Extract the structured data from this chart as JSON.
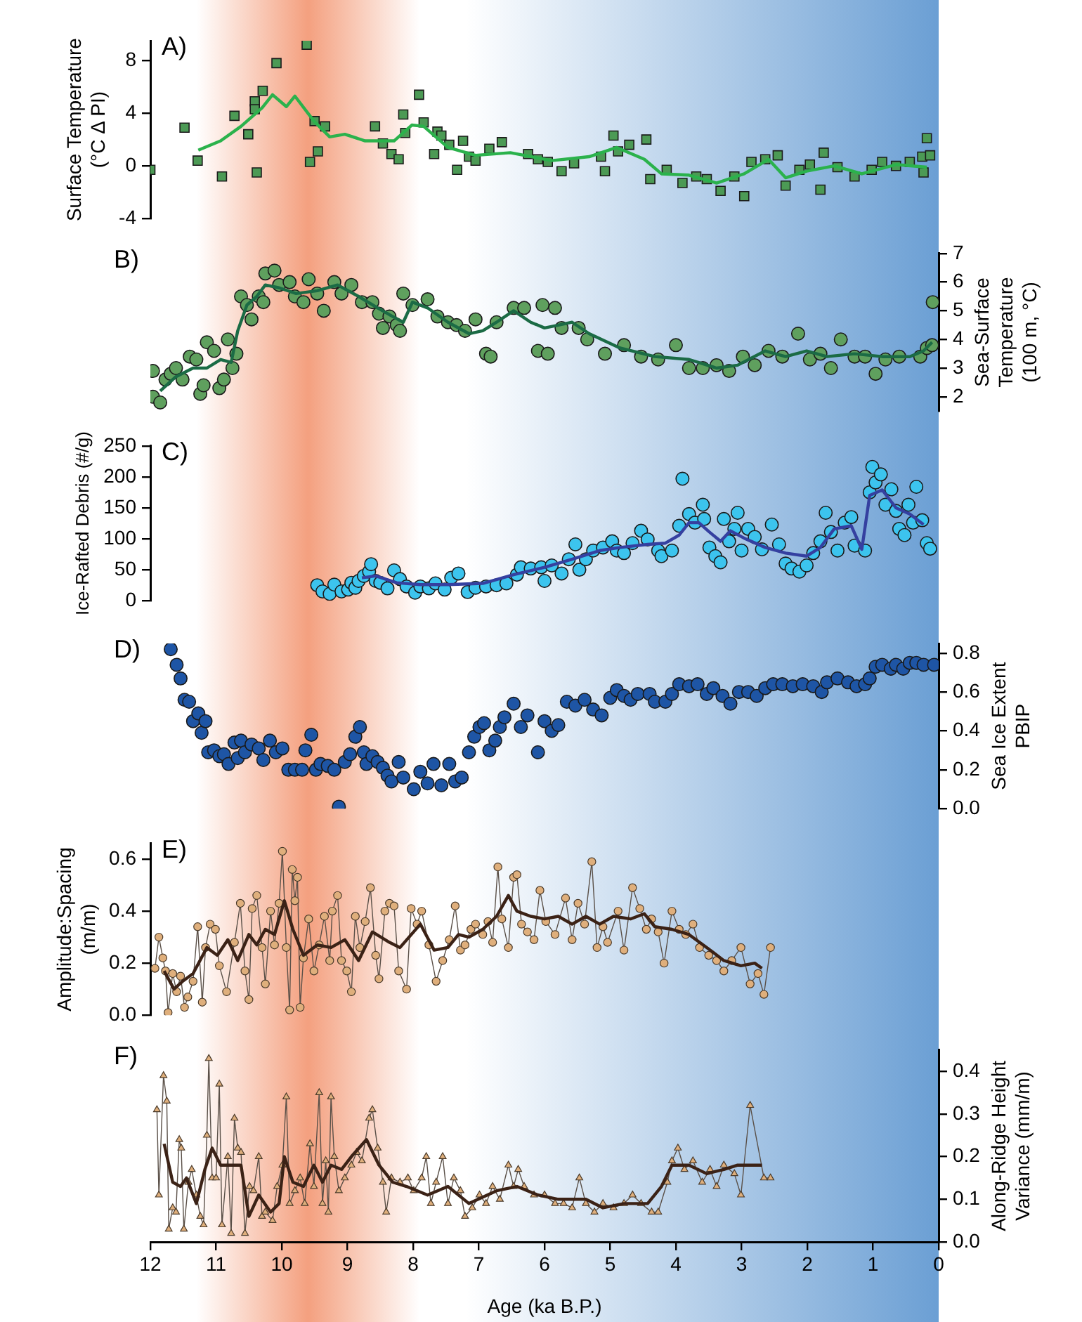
{
  "chart_data": [
    {
      "type": "scatter",
      "title": "A)",
      "ylabel": "Surface Temperature\n(°C Δ PI)",
      "xlim": [
        12,
        0
      ],
      "ylim": [
        -4,
        9.5
      ],
      "yticks": [
        -4,
        0,
        4,
        8
      ],
      "tick_labels": "y",
      "bands": [
        {
          "axis": "x",
          "from": 11.3,
          "to": 7.9,
          "color": "#f4a07f"
        },
        {
          "axis": "x",
          "from": 7.2,
          "to": 0,
          "color": "#6b9fd4"
        }
      ],
      "series": [
        {
          "marker": "square",
          "color": "#4c9a55",
          "x": [
            12.0,
            11.48,
            11.28,
            10.91,
            10.72,
            10.51,
            10.41,
            10.41,
            10.38,
            10.29,
            10.08,
            9.62,
            9.57,
            9.5,
            9.45,
            9.34,
            8.58,
            8.46,
            8.33,
            8.22,
            8.15,
            8.12,
            7.91,
            7.84,
            7.68,
            7.63,
            7.57,
            7.45,
            7.33,
            7.24,
            7.15,
            7.05,
            6.84,
            6.65,
            6.25,
            6.1,
            5.95,
            5.74,
            5.55,
            5.14,
            5.08,
            4.95,
            4.88,
            4.71,
            4.45,
            4.39,
            4.14,
            3.9,
            3.69,
            3.53,
            3.32,
            3.11,
            2.96,
            2.85,
            2.64,
            2.45,
            2.33,
            2.12,
            1.96,
            1.8,
            1.75,
            1.54,
            1.28,
            1.02,
            0.86,
            0.65,
            0.44,
            0.25,
            0.23,
            0.18,
            0.13
          ],
          "values": [
            -0.3,
            2.9,
            0.4,
            -0.8,
            3.8,
            2.4,
            4.9,
            4.3,
            -0.5,
            5.7,
            7.8,
            9.2,
            0.3,
            3.4,
            1.1,
            3.0,
            3.0,
            1.7,
            0.9,
            0.5,
            3.9,
            2.5,
            5.4,
            3.3,
            0.9,
            2.6,
            2.3,
            1.6,
            -0.3,
            1.9,
            0.7,
            0.4,
            1.3,
            1.8,
            0.9,
            0.5,
            0.3,
            -0.4,
            0.2,
            0.7,
            -0.4,
            2.3,
            1.1,
            1.6,
            2.0,
            -1.0,
            -0.3,
            -1.3,
            -0.8,
            -1.0,
            -1.9,
            -0.8,
            -2.3,
            0.3,
            0.5,
            0.8,
            -1.5,
            -0.3,
            0.1,
            -1.8,
            1.0,
            -0.1,
            -0.8,
            -0.3,
            0.3,
            0.0,
            0.3,
            0.7,
            -0.5,
            2.1,
            0.8
          ]
        },
        {
          "type": "line",
          "marker": "none",
          "color": "#2bb24c",
          "x": [
            11.27,
            10.93,
            10.62,
            10.3,
            10.14,
            9.93,
            9.8,
            9.51,
            9.27,
            9.04,
            8.73,
            8.29,
            8.02,
            7.84,
            7.47,
            7.05,
            6.52,
            5.89,
            5.32,
            4.9,
            4.48,
            4.22,
            3.8,
            3.38,
            2.96,
            2.59,
            2.33,
            2.01,
            1.59,
            1.17,
            0.65,
            0.18
          ],
          "values": [
            1.2,
            1.9,
            3.0,
            4.4,
            5.4,
            4.5,
            5.3,
            3.4,
            2.2,
            2.4,
            1.9,
            1.9,
            3.1,
            3.0,
            1.4,
            0.8,
            1.0,
            0.4,
            0.7,
            1.4,
            0.5,
            -0.6,
            -0.7,
            -1.3,
            -0.6,
            0.5,
            -0.9,
            -0.4,
            0.0,
            -0.6,
            0.1,
            -0.1
          ]
        }
      ]
    },
    {
      "type": "scatter",
      "title": "B)",
      "y2label": "Sea-Surface\nTemperature\n(100 m, °C)",
      "xlim": [
        12,
        0
      ],
      "y2lim": [
        1.5,
        7
      ],
      "y2ticks": [
        2,
        3,
        4,
        5,
        6,
        7
      ],
      "tick_labels": "y",
      "bands": [
        {
          "axis": "x",
          "from": 11.3,
          "to": 7.9,
          "color": "#f4a07f"
        },
        {
          "axis": "x",
          "from": 7.2,
          "to": 0,
          "color": "#6b9fd4"
        }
      ],
      "series": [
        {
          "axis": "y2",
          "marker": "circle",
          "color": "#5fa05e",
          "x": [
            11.96,
            11.96,
            11.85,
            11.77,
            11.69,
            11.61,
            11.51,
            11.4,
            11.3,
            11.24,
            11.19,
            11.14,
            11.03,
            10.95,
            10.88,
            10.82,
            10.75,
            10.69,
            10.62,
            10.53,
            10.46,
            10.35,
            10.28,
            10.25,
            10.11,
            10.04,
            9.88,
            9.8,
            9.67,
            9.59,
            9.46,
            9.36,
            9.2,
            9.09,
            8.94,
            8.78,
            8.62,
            8.52,
            8.46,
            8.36,
            8.25,
            8.2,
            8.15,
            8.01,
            7.78,
            7.63,
            7.47,
            7.34,
            7.21,
            7.05,
            6.89,
            6.82,
            6.73,
            6.47,
            6.31,
            6.1,
            5.95,
            6.03,
            5.84,
            5.74,
            5.48,
            5.35,
            5.08,
            4.79,
            4.53,
            4.27,
            4.0,
            3.8,
            3.59,
            3.38,
            3.19,
            2.98,
            2.8,
            2.59,
            2.38,
            2.14,
            1.96,
            1.8,
            1.64,
            1.49,
            1.28,
            1.12,
            0.96,
            0.81,
            0.6,
            0.28,
            0.18,
            0.1,
            0.09
          ],
          "values": [
            2.9,
            2.0,
            1.8,
            2.6,
            2.8,
            3.0,
            2.6,
            3.4,
            3.3,
            2.1,
            2.4,
            3.9,
            3.6,
            2.3,
            2.6,
            4.0,
            3.0,
            3.5,
            5.5,
            5.2,
            4.7,
            5.5,
            5.3,
            6.3,
            6.4,
            5.9,
            6.0,
            5.5,
            5.3,
            6.1,
            5.6,
            5.0,
            6.0,
            5.6,
            5.9,
            5.3,
            5.3,
            4.9,
            4.4,
            4.8,
            4.5,
            4.3,
            5.6,
            5.2,
            5.4,
            4.8,
            4.6,
            4.5,
            4.3,
            4.7,
            3.5,
            3.4,
            4.6,
            5.1,
            5.1,
            3.6,
            3.5,
            5.2,
            5.1,
            4.4,
            4.4,
            4.0,
            3.5,
            3.8,
            3.4,
            3.3,
            3.8,
            3.0,
            3.0,
            3.1,
            2.9,
            3.4,
            3.1,
            3.6,
            3.4,
            4.2,
            3.3,
            3.5,
            3.0,
            4.0,
            3.4,
            3.4,
            2.8,
            3.3,
            3.4,
            3.4,
            3.7,
            3.8,
            5.3
          ]
        },
        {
          "type": "line",
          "axis": "y2",
          "marker": "none",
          "color": "#1b6b45",
          "x": [
            11.85,
            11.61,
            11.35,
            11.14,
            10.93,
            10.77,
            10.67,
            10.53,
            10.38,
            10.25,
            10.04,
            9.78,
            9.46,
            9.15,
            8.83,
            8.54,
            8.31,
            8.15,
            8.01,
            7.78,
            7.47,
            7.15,
            6.94,
            6.73,
            6.47,
            6.21,
            6.0,
            5.79,
            5.58,
            5.32,
            4.85,
            4.32,
            3.8,
            3.38,
            3.06,
            2.64,
            2.33,
            2.01,
            1.7,
            1.28,
            0.86,
            0.44,
            0.23,
            0.1
          ],
          "values": [
            2.2,
            2.7,
            3.0,
            3.0,
            3.3,
            3.2,
            4.3,
            5.2,
            5.5,
            5.9,
            5.8,
            5.6,
            5.7,
            5.9,
            5.5,
            5.1,
            4.8,
            4.6,
            5.3,
            5.1,
            4.6,
            4.2,
            4.3,
            4.6,
            5.0,
            4.6,
            4.4,
            4.5,
            4.6,
            4.2,
            3.7,
            3.4,
            3.3,
            3.0,
            3.1,
            3.6,
            3.4,
            3.6,
            3.4,
            3.5,
            3.4,
            3.4,
            3.6,
            3.9
          ]
        }
      ]
    },
    {
      "type": "scatter",
      "title": "C)",
      "ylabel": "Ice-Rafted Debris (#/g)",
      "xlim": [
        12,
        0
      ],
      "ylim": [
        0,
        250
      ],
      "yticks": [
        0,
        50,
        100,
        150,
        200,
        250
      ],
      "tick_labels": "y",
      "bands": [
        {
          "axis": "x",
          "from": 11.3,
          "to": 7.9,
          "color": "#f4a07f"
        },
        {
          "axis": "x",
          "from": 7.2,
          "to": 0,
          "color": "#6b9fd4"
        }
      ],
      "series": [
        {
          "marker": "circle",
          "color": "#3cc4ee",
          "x": [
            9.46,
            9.38,
            9.27,
            9.2,
            9.09,
            8.99,
            8.94,
            8.88,
            8.83,
            8.75,
            8.67,
            8.64,
            8.57,
            8.5,
            8.39,
            8.29,
            8.2,
            8.1,
            7.97,
            7.89,
            7.76,
            7.66,
            7.52,
            7.42,
            7.31,
            7.17,
            7.05,
            6.89,
            6.73,
            6.58,
            6.42,
            6.36,
            6.21,
            6.05,
            6.0,
            5.89,
            5.74,
            5.63,
            5.53,
            5.47,
            5.37,
            5.26,
            5.11,
            4.97,
            4.9,
            4.79,
            4.66,
            4.53,
            4.43,
            4.27,
            4.22,
            4.06,
            3.95,
            3.9,
            3.8,
            3.71,
            3.59,
            3.57,
            3.49,
            3.4,
            3.32,
            3.27,
            3.19,
            3.11,
            3.06,
            3.0,
            2.9,
            2.8,
            2.69,
            2.54,
            2.43,
            2.33,
            2.24,
            2.12,
            2.01,
            1.91,
            1.8,
            1.72,
            1.64,
            1.54,
            1.43,
            1.33,
            1.28,
            1.12,
            1.05,
            1.01,
            0.96,
            0.88,
            0.81,
            0.72,
            0.65,
            0.6,
            0.52,
            0.46,
            0.39,
            0.34,
            0.25,
            0.18,
            0.13
          ],
          "values": [
            25,
            15,
            11,
            26,
            15,
            18,
            29,
            21,
            32,
            40,
            47,
            59,
            32,
            29,
            20,
            49,
            35,
            23,
            13,
            23,
            20,
            28,
            18,
            37,
            44,
            14,
            21,
            23,
            25,
            28,
            42,
            54,
            52,
            54,
            32,
            57,
            44,
            67,
            91,
            50,
            67,
            81,
            86,
            96,
            81,
            77,
            93,
            113,
            99,
            81,
            72,
            81,
            121,
            197,
            140,
            126,
            155,
            132,
            86,
            72,
            62,
            132,
            96,
            116,
            142,
            81,
            116,
            103,
            83,
            123,
            91,
            60,
            52,
            47,
            57,
            77,
            96,
            142,
            111,
            81,
            126,
            135,
            89,
            81,
            175,
            216,
            191,
            204,
            155,
            180,
            145,
            116,
            106,
            155,
            126,
            184,
            130,
            93,
            84
          ]
        },
        {
          "type": "line",
          "marker": "none",
          "color": "#3540a0",
          "x": [
            8.78,
            8.57,
            8.25,
            7.89,
            7.47,
            6.94,
            6.47,
            6.0,
            5.58,
            5.16,
            4.85,
            4.43,
            4.16,
            3.95,
            3.8,
            3.65,
            3.49,
            3.32,
            3.17,
            2.96,
            2.64,
            2.33,
            2.01,
            1.8,
            1.59,
            1.33,
            1.17,
            1.05,
            0.86,
            0.65,
            0.44,
            0.23
          ],
          "values": [
            37,
            40,
            29,
            26,
            26,
            28,
            42,
            54,
            67,
            81,
            86,
            91,
            93,
            106,
            126,
            126,
            111,
            96,
            113,
            101,
            86,
            77,
            72,
            86,
            116,
            121,
            83,
            170,
            179,
            150,
            140,
            123
          ]
        }
      ]
    },
    {
      "type": "scatter",
      "title": "D)",
      "y2label": "Sea Ice Extent\nPBIP",
      "xlim": [
        12,
        0
      ],
      "y2lim": [
        0,
        0.85
      ],
      "y2ticks": [
        {
          "value": 0,
          "label": "0.0"
        },
        0.2,
        0.4,
        0.6,
        0.8
      ],
      "tick_labels": "y",
      "bands": [
        {
          "axis": "x",
          "from": 11.3,
          "to": 7.9,
          "color": "#f4a07f"
        },
        {
          "axis": "x",
          "from": 7.2,
          "to": 0,
          "color": "#6b9fd4"
        }
      ],
      "series": [
        {
          "axis": "y2",
          "marker": "circle",
          "color": "#1e55a5",
          "x": [
            11.69,
            11.6,
            11.54,
            11.48,
            11.41,
            11.35,
            11.27,
            11.22,
            11.16,
            11.12,
            11.03,
            10.95,
            10.88,
            10.81,
            10.72,
            10.67,
            10.62,
            10.56,
            10.46,
            10.35,
            10.28,
            10.18,
            10.09,
            9.99,
            9.9,
            9.8,
            9.69,
            9.64,
            9.55,
            9.48,
            9.41,
            9.3,
            9.2,
            9.13,
            9.04,
            8.96,
            8.88,
            8.81,
            8.75,
            8.71,
            8.62,
            8.54,
            8.46,
            8.39,
            8.33,
            8.22,
            8.15,
            7.99,
            7.89,
            7.78,
            7.69,
            7.57,
            7.45,
            7.36,
            7.26,
            7.15,
            7.07,
            6.99,
            6.92,
            6.84,
            6.75,
            6.68,
            6.61,
            6.47,
            6.36,
            6.26,
            6.1,
            6.0,
            5.89,
            5.79,
            5.66,
            5.53,
            5.39,
            5.26,
            5.13,
            5.0,
            4.9,
            4.79,
            4.69,
            4.58,
            4.4,
            4.32,
            4.16,
            4.06,
            3.95,
            3.8,
            3.67,
            3.53,
            3.43,
            3.29,
            3.17,
            3.04,
            2.9,
            2.77,
            2.64,
            2.52,
            2.38,
            2.22,
            2.07,
            1.91,
            1.78,
            1.7,
            1.54,
            1.38,
            1.25,
            1.12,
            1.05,
            0.96,
            0.86,
            0.73,
            0.65,
            0.54,
            0.44,
            0.34,
            0.23,
            0.07
          ],
          "values": [
            0.82,
            0.74,
            0.67,
            0.56,
            0.55,
            0.45,
            0.49,
            0.39,
            0.45,
            0.29,
            0.3,
            0.27,
            0.28,
            0.23,
            0.34,
            0.26,
            0.35,
            0.29,
            0.33,
            0.31,
            0.25,
            0.35,
            0.29,
            0.31,
            0.2,
            0.2,
            0.2,
            0.3,
            0.38,
            0.2,
            0.23,
            0.22,
            0.2,
            0.01,
            0.24,
            0.28,
            0.37,
            0.42,
            0.29,
            0.23,
            0.27,
            0.24,
            0.21,
            0.17,
            0.14,
            0.24,
            0.16,
            0.1,
            0.19,
            0.13,
            0.23,
            0.12,
            0.23,
            0.14,
            0.16,
            0.29,
            0.37,
            0.42,
            0.44,
            0.3,
            0.35,
            0.42,
            0.47,
            0.54,
            0.42,
            0.48,
            0.29,
            0.45,
            0.4,
            0.43,
            0.55,
            0.53,
            0.56,
            0.51,
            0.48,
            0.57,
            0.61,
            0.58,
            0.56,
            0.59,
            0.59,
            0.55,
            0.55,
            0.59,
            0.64,
            0.63,
            0.64,
            0.59,
            0.62,
            0.58,
            0.54,
            0.6,
            0.6,
            0.58,
            0.62,
            0.64,
            0.64,
            0.63,
            0.64,
            0.63,
            0.6,
            0.65,
            0.67,
            0.65,
            0.63,
            0.64,
            0.67,
            0.73,
            0.74,
            0.72,
            0.74,
            0.72,
            0.75,
            0.75,
            0.74,
            0.74
          ]
        }
      ]
    },
    {
      "type": "line",
      "title": "E)",
      "ylabel": "Amplitude:Spacing\n(m/m)",
      "xlim": [
        12,
        0
      ],
      "ylim": [
        0,
        0.66
      ],
      "yticks": [
        {
          "value": 0,
          "label": "0.0"
        },
        0.2,
        0.4,
        0.6
      ],
      "tick_labels": "y",
      "bands": [
        {
          "axis": "x",
          "from": 11.3,
          "to": 7.9,
          "color": "#f4a07f"
        },
        {
          "axis": "x",
          "from": 7.2,
          "to": 0,
          "color": "#6b9fd4"
        }
      ],
      "series": [
        {
          "marker": "circle",
          "color": "#dfaf7c",
          "x": [
            11.93,
            11.87,
            11.81,
            11.77,
            11.73,
            11.66,
            11.6,
            11.54,
            11.48,
            11.43,
            11.35,
            11.28,
            11.21,
            11.16,
            11.09,
            11.01,
            10.95,
            10.84,
            10.72,
            10.63,
            10.56,
            10.5,
            10.45,
            10.38,
            10.3,
            10.25,
            10.17,
            10.11,
            10.04,
            9.99,
            9.93,
            9.88,
            9.84,
            9.8,
            9.76,
            9.72,
            9.67,
            9.59,
            9.51,
            9.43,
            9.35,
            9.27,
            9.23,
            9.15,
            9.09,
            9.01,
            8.94,
            8.88,
            8.81,
            8.73,
            8.65,
            8.57,
            8.52,
            8.43,
            8.36,
            8.29,
            8.22,
            8.1,
            8.03,
            7.94,
            7.87,
            7.76,
            7.65,
            7.55,
            7.45,
            7.36,
            7.28,
            7.21,
            7.12,
            7.05,
            6.94,
            6.86,
            6.79,
            6.71,
            6.65,
            6.55,
            6.47,
            6.42,
            6.35,
            6.26,
            6.16,
            6.07,
            5.98,
            5.84,
            5.68,
            5.58,
            5.49,
            5.39,
            5.28,
            5.2,
            5.11,
            5.04,
            4.88,
            4.79,
            4.66,
            4.55,
            4.45,
            4.37,
            4.27,
            4.18,
            4.06,
            3.95,
            3.85,
            3.74,
            3.64,
            3.5,
            3.38,
            3.27,
            3.15,
            3.01,
            2.87,
            2.75,
            2.66,
            2.56
          ],
          "values": [
            0.18,
            0.3,
            0.22,
            0.17,
            0.01,
            0.16,
            0.09,
            0.15,
            0.03,
            0.07,
            0.13,
            0.34,
            0.05,
            0.26,
            0.35,
            0.33,
            0.19,
            0.09,
            0.28,
            0.43,
            0.17,
            0.06,
            0.41,
            0.46,
            0.26,
            0.12,
            0.4,
            0.27,
            0.43,
            0.63,
            0.26,
            0.02,
            0.56,
            0.44,
            0.53,
            0.03,
            0.22,
            0.37,
            0.17,
            0.27,
            0.38,
            0.21,
            0.4,
            0.46,
            0.21,
            0.17,
            0.09,
            0.38,
            0.26,
            0.36,
            0.49,
            0.23,
            0.14,
            0.4,
            0.43,
            0.42,
            0.17,
            0.1,
            0.41,
            0.35,
            0.4,
            0.27,
            0.13,
            0.21,
            0.29,
            0.42,
            0.25,
            0.27,
            0.33,
            0.35,
            0.31,
            0.36,
            0.28,
            0.57,
            0.37,
            0.26,
            0.53,
            0.54,
            0.35,
            0.32,
            0.29,
            0.48,
            0.36,
            0.31,
            0.45,
            0.29,
            0.43,
            0.35,
            0.59,
            0.26,
            0.34,
            0.28,
            0.4,
            0.25,
            0.49,
            0.41,
            0.33,
            0.37,
            0.32,
            0.2,
            0.4,
            0.33,
            0.31,
            0.35,
            0.26,
            0.23,
            0.21,
            0.17,
            0.21,
            0.26,
            0.12,
            0.16,
            0.08,
            0.26
          ]
        },
        {
          "marker": "none",
          "color": "#3b2216",
          "x": [
            11.79,
            11.64,
            11.51,
            11.35,
            11.14,
            10.98,
            10.82,
            10.67,
            10.5,
            10.38,
            10.25,
            10.11,
            9.96,
            9.83,
            9.67,
            9.46,
            9.25,
            9.04,
            8.83,
            8.62,
            8.36,
            8.2,
            7.89,
            7.68,
            7.47,
            7.31,
            7.15,
            6.94,
            6.73,
            6.55,
            6.42,
            6.21,
            6.0,
            5.79,
            5.58,
            5.37,
            5.16,
            4.95,
            4.69,
            4.48,
            4.32,
            4.06,
            3.8,
            3.53,
            3.27,
            3.01,
            2.8,
            2.69
          ],
          "values": [
            0.17,
            0.1,
            0.13,
            0.16,
            0.26,
            0.23,
            0.29,
            0.21,
            0.31,
            0.27,
            0.33,
            0.31,
            0.44,
            0.33,
            0.23,
            0.27,
            0.26,
            0.29,
            0.21,
            0.32,
            0.28,
            0.26,
            0.35,
            0.25,
            0.26,
            0.31,
            0.3,
            0.33,
            0.38,
            0.46,
            0.4,
            0.38,
            0.37,
            0.38,
            0.35,
            0.38,
            0.35,
            0.38,
            0.37,
            0.39,
            0.34,
            0.33,
            0.31,
            0.26,
            0.21,
            0.19,
            0.2,
            0.18
          ]
        }
      ]
    },
    {
      "type": "line",
      "title": "F)",
      "xlabel": "Age (ka B.P.)",
      "y2label": "Along-Ridge Height\nVariance (mm/m)",
      "xlim": [
        12,
        0
      ],
      "xticks": [
        12,
        11,
        10,
        9,
        8,
        7,
        6,
        5,
        4,
        3,
        2,
        1,
        0
      ],
      "y2lim": [
        0,
        0.45
      ],
      "y2ticks": [
        {
          "value": 0,
          "label": "0.0"
        },
        0.1,
        0.2,
        0.3,
        0.4
      ],
      "bands": [
        {
          "axis": "x",
          "from": 11.3,
          "to": 7.9,
          "color": "#f4a07f"
        },
        {
          "axis": "x",
          "from": 7.2,
          "to": 0,
          "color": "#6b9fd4"
        }
      ],
      "series": [
        {
          "axis": "y2",
          "marker": "triangle",
          "color": "#dfaf7c",
          "x": [
            11.9,
            11.87,
            11.8,
            11.75,
            11.72,
            11.66,
            11.61,
            11.56,
            11.53,
            11.49,
            11.42,
            11.37,
            11.3,
            11.24,
            11.19,
            11.14,
            11.11,
            11.06,
            11.0,
            10.95,
            10.91,
            10.82,
            10.77,
            10.72,
            10.67,
            10.62,
            10.56,
            10.49,
            10.43,
            10.35,
            10.3,
            10.25,
            10.14,
            10.07,
            9.99,
            9.93,
            9.88,
            9.8,
            9.72,
            9.65,
            9.57,
            9.51,
            9.43,
            9.38,
            9.33,
            9.29,
            9.25,
            9.2,
            9.13,
            9.04,
            8.94,
            8.86,
            8.78,
            8.67,
            8.62,
            8.54,
            8.46,
            8.41,
            8.33,
            8.2,
            8.08,
            7.99,
            7.87,
            7.8,
            7.73,
            7.65,
            7.55,
            7.47,
            7.38,
            7.28,
            7.21,
            7.1,
            6.99,
            6.89,
            6.79,
            6.68,
            6.55,
            6.47,
            6.4,
            6.31,
            6.16,
            6.0,
            5.84,
            5.71,
            5.58,
            5.47,
            5.37,
            5.24,
            5.11,
            4.95,
            4.79,
            4.66,
            4.53,
            4.37,
            4.27,
            4.13,
            4.06,
            3.97,
            3.87,
            3.74,
            3.6,
            3.48,
            3.38,
            3.27,
            3.11,
            3.01,
            2.87,
            2.66,
            2.56
          ],
          "values": [
            0.31,
            0.11,
            0.39,
            0.33,
            0.03,
            0.08,
            0.07,
            0.24,
            0.22,
            0.03,
            0.14,
            0.17,
            0.11,
            0.06,
            0.04,
            0.25,
            0.43,
            0.15,
            0.15,
            0.37,
            0.04,
            0.2,
            0.02,
            0.29,
            0.22,
            0.21,
            0.02,
            0.13,
            0.12,
            0.2,
            0.06,
            0.07,
            0.05,
            0.13,
            0.18,
            0.34,
            0.09,
            0.12,
            0.15,
            0.09,
            0.23,
            0.13,
            0.35,
            0.09,
            0.19,
            0.07,
            0.34,
            0.2,
            0.12,
            0.15,
            0.18,
            0.21,
            0.19,
            0.29,
            0.31,
            0.22,
            0.14,
            0.07,
            0.15,
            0.14,
            0.15,
            0.12,
            0.15,
            0.2,
            0.09,
            0.14,
            0.2,
            0.09,
            0.15,
            0.12,
            0.06,
            0.08,
            0.11,
            0.09,
            0.13,
            0.1,
            0.18,
            0.13,
            0.17,
            0.13,
            0.11,
            0.11,
            0.09,
            0.09,
            0.08,
            0.15,
            0.09,
            0.07,
            0.09,
            0.08,
            0.09,
            0.11,
            0.09,
            0.07,
            0.07,
            0.14,
            0.19,
            0.22,
            0.17,
            0.19,
            0.14,
            0.17,
            0.13,
            0.18,
            0.16,
            0.11,
            0.32,
            0.15,
            0.15
          ]
        },
        {
          "axis": "y2",
          "marker": "none",
          "color": "#3b2216",
          "x": [
            11.79,
            11.66,
            11.54,
            11.45,
            11.3,
            11.17,
            11.06,
            10.93,
            10.77,
            10.62,
            10.5,
            10.35,
            10.17,
            10.04,
            9.96,
            9.83,
            9.67,
            9.51,
            9.38,
            9.25,
            9.09,
            8.94,
            8.71,
            8.52,
            8.31,
            8.1,
            7.78,
            7.47,
            7.15,
            6.73,
            6.42,
            6.1,
            5.79,
            5.37,
            5.11,
            4.79,
            4.43,
            4.22,
            4.06,
            3.8,
            3.53,
            3.27,
            3.06,
            2.69
          ],
          "values": [
            0.23,
            0.14,
            0.13,
            0.15,
            0.09,
            0.17,
            0.22,
            0.18,
            0.18,
            0.18,
            0.06,
            0.11,
            0.07,
            0.09,
            0.2,
            0.14,
            0.13,
            0.18,
            0.14,
            0.18,
            0.17,
            0.2,
            0.24,
            0.18,
            0.14,
            0.13,
            0.11,
            0.13,
            0.09,
            0.12,
            0.13,
            0.11,
            0.1,
            0.1,
            0.08,
            0.09,
            0.09,
            0.13,
            0.18,
            0.18,
            0.16,
            0.17,
            0.18,
            0.18
          ]
        }
      ]
    }
  ]
}
